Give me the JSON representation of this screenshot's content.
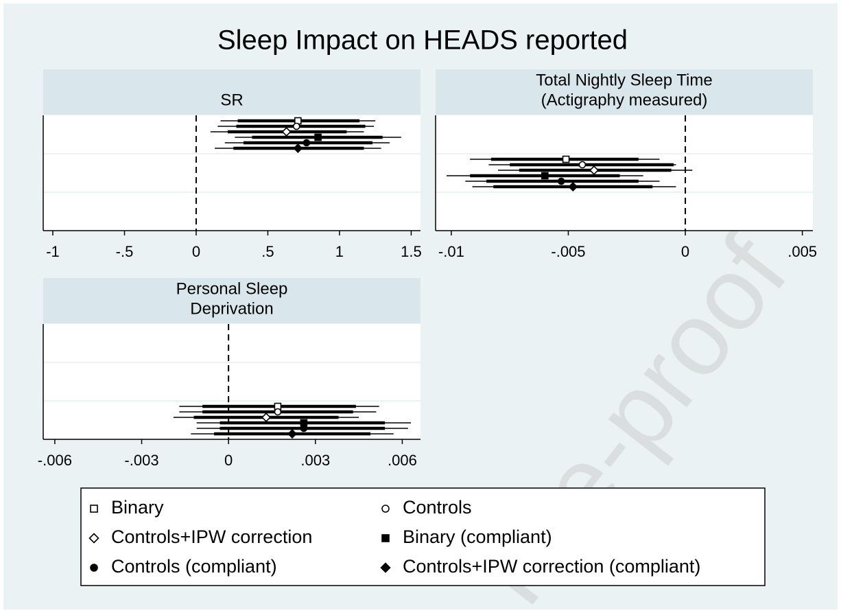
{
  "title": "Sleep Impact on HEADS reported",
  "watermark": "Pre-proof",
  "legend": [
    {
      "name": "Binary",
      "marker": "square-hollow"
    },
    {
      "name": "Controls",
      "marker": "circle-hollow"
    },
    {
      "name": "Controls+IPW correction",
      "marker": "diamond-hollow"
    },
    {
      "name": "Binary (compliant)",
      "marker": "square"
    },
    {
      "name": "Controls (compliant)",
      "marker": "circle"
    },
    {
      "name": "Controls+IPW correction (compliant)",
      "marker": "diamond"
    }
  ],
  "chart_data": [
    {
      "type": "coefplot",
      "title": [
        "SR"
      ],
      "refline": 0,
      "color": "#000000",
      "xlim": [
        -1.067,
        1.565
      ],
      "xticks": [
        -1,
        {
          "value": -0.5,
          "label": "-.5"
        },
        0,
        {
          "value": 0.5,
          "label": ".5"
        },
        1,
        1.5
      ],
      "estimates": [
        {
          "value": 0.71,
          "ci_inner": [
            0.29,
            1.14
          ],
          "ci_outer": [
            0.17,
            1.25
          ]
        },
        {
          "value": 0.7,
          "ci_inner": [
            0.28,
            1.18
          ],
          "ci_outer": [
            0.15,
            1.24
          ]
        },
        {
          "value": 0.63,
          "ci_inner": [
            0.22,
            1.05
          ],
          "ci_outer": [
            0.1,
            1.17
          ]
        },
        {
          "value": 0.85,
          "ci_inner": [
            0.39,
            1.3
          ],
          "ci_outer": [
            0.27,
            1.43
          ]
        },
        {
          "value": 0.77,
          "ci_inner": [
            0.33,
            1.23
          ],
          "ci_outer": [
            0.2,
            1.35
          ]
        },
        {
          "value": 0.71,
          "ci_inner": [
            0.26,
            1.17
          ],
          "ci_outer": [
            0.13,
            1.29
          ]
        }
      ]
    },
    {
      "type": "coefplot",
      "title": [
        "Total Nightly Sleep Time",
        "(Actigraphy measured)"
      ],
      "refline": 0,
      "color": "#000000",
      "xlim": [
        -0.01067,
        0.00545
      ],
      "xticks": [
        {
          "value": -0.01,
          "label": "-.01"
        },
        {
          "value": -0.005,
          "label": "-.005"
        },
        0,
        {
          "value": 0.005,
          "label": ".005"
        }
      ],
      "estimates": [
        {
          "value": -0.0051,
          "ci_inner": [
            -0.0083,
            -0.002
          ],
          "ci_outer": [
            -0.0092,
            -0.0011
          ]
        },
        {
          "value": -0.0044,
          "ci_inner": [
            -0.0075,
            -0.0005
          ],
          "ci_outer": [
            -0.0084,
            -0.0004
          ]
        },
        {
          "value": -0.0039,
          "ci_inner": [
            -0.0071,
            -0.0006
          ],
          "ci_outer": [
            -0.008,
            0.0003
          ]
        },
        {
          "value": -0.006,
          "ci_inner": [
            -0.0092,
            -0.0028
          ],
          "ci_outer": [
            -0.0102,
            -0.0018
          ]
        },
        {
          "value": -0.0053,
          "ci_inner": [
            -0.0085,
            -0.002
          ],
          "ci_outer": [
            -0.0094,
            -0.0011
          ]
        },
        {
          "value": -0.0048,
          "ci_inner": [
            -0.0082,
            -0.0014
          ],
          "ci_outer": [
            -0.0091,
            -0.0004
          ]
        }
      ]
    },
    {
      "type": "coefplot",
      "title": [
        "Personal Sleep",
        "Deprivation"
      ],
      "refline": 0,
      "color": "#000000",
      "xlim": [
        -0.0064,
        0.00663
      ],
      "xticks": [
        {
          "value": -0.006,
          "label": "-.006"
        },
        {
          "value": -0.003,
          "label": "-.003"
        },
        0,
        {
          "value": 0.003,
          "label": ".003"
        },
        {
          "value": 0.006,
          "label": ".006"
        }
      ],
      "estimates": [
        {
          "value": 0.0017,
          "ci_inner": [
            -0.0009,
            0.0044
          ],
          "ci_outer": [
            -0.0017,
            0.0052
          ]
        },
        {
          "value": 0.0017,
          "ci_inner": [
            -0.0009,
            0.0043
          ],
          "ci_outer": [
            -0.0017,
            0.0051
          ]
        },
        {
          "value": 0.0013,
          "ci_inner": [
            -0.0012,
            0.0038
          ],
          "ci_outer": [
            -0.0019,
            0.0045
          ]
        },
        {
          "value": 0.0026,
          "ci_inner": [
            -0.0003,
            0.0054
          ],
          "ci_outer": [
            -0.0011,
            0.0063
          ]
        },
        {
          "value": 0.0026,
          "ci_inner": [
            -0.0003,
            0.0054
          ],
          "ci_outer": [
            -0.0011,
            0.0062
          ]
        },
        {
          "value": 0.0022,
          "ci_inner": [
            -0.0005,
            0.0049
          ],
          "ci_outer": [
            -0.0013,
            0.0057
          ]
        }
      ]
    }
  ]
}
